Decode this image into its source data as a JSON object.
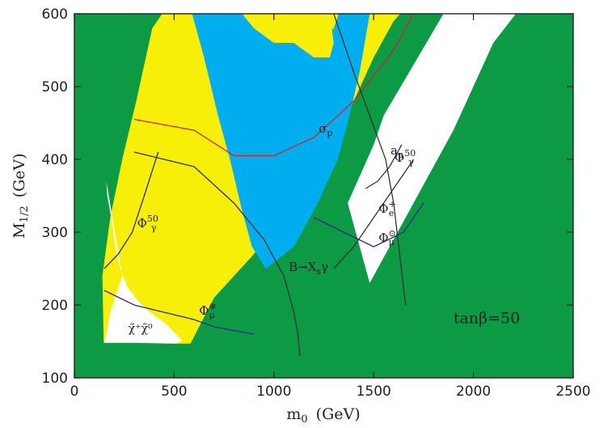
{
  "chart_data": {
    "type": "area",
    "title": "",
    "xlabel": "m",
    "xlabel_sub": "0",
    "xlabel_unit": "(GeV)",
    "ylabel": "M",
    "ylabel_sub": "1/2",
    "ylabel_unit": "(GeV)",
    "xlim": [
      0,
      2500
    ],
    "ylim": [
      100,
      600
    ],
    "x_ticks": [
      0,
      500,
      1000,
      1500,
      2000,
      2500
    ],
    "y_ticks": [
      100,
      200,
      300,
      400,
      500,
      600
    ],
    "x_tick_labels": [
      "0",
      "500",
      "1000",
      "1500",
      "2000",
      "2500"
    ],
    "y_tick_labels": [
      "100",
      "200",
      "300",
      "400",
      "500",
      "600"
    ],
    "colors": {
      "excluded": "#0c9a45",
      "preferred": "#f8ef09",
      "favored": "#00aeef",
      "allowed": "#ffffff",
      "sigma_p": "#d2232a",
      "phi_labels": "#2b2b8c",
      "contours": "#333333"
    },
    "regions": [
      {
        "name": "yellow",
        "color": "#f8ef09",
        "points": [
          [
            150,
            110
          ],
          [
            350,
            100
          ],
          [
            550,
            130
          ],
          [
            700,
            210
          ],
          [
            900,
            270
          ],
          [
            1100,
            350
          ],
          [
            1300,
            420
          ],
          [
            1400,
            480
          ],
          [
            1500,
            540
          ],
          [
            1600,
            590
          ],
          [
            1700,
            620
          ],
          [
            1200,
            620
          ],
          [
            700,
            620
          ],
          [
            490,
            620
          ],
          [
            390,
            580
          ],
          [
            310,
            480
          ],
          [
            240,
            400
          ],
          [
            180,
            320
          ],
          [
            140,
            240
          ]
        ]
      },
      {
        "name": "white",
        "color": "#ffffff",
        "points": [
          [
            160,
            370
          ],
          [
            240,
            240
          ],
          [
            180,
            190
          ],
          [
            160,
            160
          ],
          [
            150,
            148
          ],
          [
            220,
            147
          ],
          [
            300,
            148
          ],
          [
            420,
            147
          ],
          [
            505,
            147
          ],
          [
            540,
            151
          ],
          [
            455,
            175
          ],
          [
            380,
            190
          ],
          [
            320,
            205
          ],
          [
            265,
            225
          ],
          [
            230,
            250
          ],
          [
            205,
            280
          ],
          [
            190,
            310
          ],
          [
            175,
            335
          ],
          [
            165,
            350
          ]
        ]
      },
      {
        "name": "white-band",
        "color": "#ffffff",
        "points": [
          [
            1370,
            340
          ],
          [
            1500,
            420
          ],
          [
            1550,
            460
          ],
          [
            1850,
            600
          ],
          [
            1980,
            620
          ],
          [
            2270,
            620
          ],
          [
            2100,
            560
          ],
          [
            1900,
            440
          ],
          [
            1700,
            340
          ],
          [
            1480,
            230
          ]
        ]
      },
      {
        "name": "green-lower",
        "color": "#0c9a45",
        "points": [
          [
            0,
            100
          ],
          [
            2500,
            100
          ],
          [
            2500,
            620
          ],
          [
            2270,
            620
          ],
          [
            2100,
            560
          ],
          [
            1900,
            440
          ],
          [
            1700,
            340
          ],
          [
            1480,
            230
          ],
          [
            1260,
            160
          ],
          [
            900,
            150
          ],
          [
            560,
            147
          ],
          [
            505,
            147
          ],
          [
            300,
            148
          ],
          [
            150,
            148
          ],
          [
            0,
            145
          ]
        ]
      },
      {
        "name": "cyan",
        "color": "#00aeef",
        "points": [
          [
            570,
            620
          ],
          [
            650,
            540
          ],
          [
            720,
            460
          ],
          [
            780,
            400
          ],
          [
            840,
            330
          ],
          [
            890,
            280
          ],
          [
            960,
            250
          ],
          [
            1100,
            280
          ],
          [
            1220,
            340
          ],
          [
            1320,
            400
          ],
          [
            1370,
            450
          ],
          [
            1430,
            520
          ],
          [
            1480,
            600
          ],
          [
            1500,
            620
          ],
          [
            1350,
            620
          ],
          [
            1300,
            580
          ],
          [
            1200,
            560
          ],
          [
            1000,
            560
          ],
          [
            900,
            580
          ],
          [
            780,
            620
          ]
        ]
      },
      {
        "name": "yellow-top",
        "color": "#f8ef09",
        "points": [
          [
            1000,
            600
          ],
          [
            1100,
            560
          ],
          [
            1200,
            540
          ],
          [
            1280,
            540
          ],
          [
            1300,
            560
          ],
          [
            1280,
            600
          ],
          [
            1250,
            620
          ],
          [
            1050,
            620
          ]
        ]
      }
    ],
    "curves": [
      {
        "name": "sigma_p",
        "label": "σ",
        "label_sub": "p",
        "color": "#d2232a",
        "points": [
          [
            300,
            455
          ],
          [
            600,
            440
          ],
          [
            800,
            405
          ],
          [
            1000,
            405
          ],
          [
            1200,
            430
          ],
          [
            1400,
            480
          ],
          [
            1600,
            550
          ],
          [
            1700,
            600
          ]
        ]
      },
      {
        "name": "bsg",
        "label": "B→X",
        "label_sub": "s",
        "label_end": "γ",
        "color": "#333333",
        "points": [
          [
            300,
            410
          ],
          [
            600,
            390
          ],
          [
            800,
            340
          ],
          [
            950,
            290
          ],
          [
            1050,
            240
          ],
          [
            1100,
            190
          ],
          [
            1120,
            160
          ],
          [
            1130,
            130
          ]
        ]
      },
      {
        "name": "amu",
        "label": "a",
        "label_sub": "μ",
        "color": "#333333",
        "points": [
          [
            1300,
            600
          ],
          [
            1350,
            560
          ],
          [
            1400,
            520
          ],
          [
            1480,
            460
          ],
          [
            1560,
            400
          ],
          [
            1600,
            340
          ],
          [
            1630,
            270
          ],
          [
            1660,
            200
          ]
        ]
      },
      {
        "name": "phi_gamma50_left",
        "label": "Φ",
        "label_sub": "γ",
        "label_sup": "50",
        "color": "#2b2b8c",
        "points": [
          [
            150,
            250
          ],
          [
            220,
            270
          ],
          [
            290,
            300
          ],
          [
            350,
            350
          ],
          [
            420,
            410
          ]
        ]
      },
      {
        "name": "phi_mu_oplus",
        "label": "Φ",
        "label_sub": "μ",
        "label_sup": "⊕",
        "color": "#2b2b8c",
        "points": [
          [
            150,
            220
          ],
          [
            300,
            200
          ],
          [
            450,
            190
          ],
          [
            600,
            180
          ],
          [
            700,
            170
          ],
          [
            900,
            160
          ]
        ]
      },
      {
        "name": "phi_mu_odot",
        "label": "Φ",
        "label_sub": "μ",
        "label_sup": "⊙",
        "color": "#2b2b8c",
        "points": [
          [
            1200,
            320
          ],
          [
            1350,
            300
          ],
          [
            1500,
            280
          ],
          [
            1650,
            300
          ],
          [
            1750,
            340
          ]
        ]
      },
      {
        "name": "phi_gamma50_right",
        "label": "Φ",
        "label_sub": "γ",
        "label_sup": "50",
        "color": "#2b2b8c",
        "points": [
          [
            1460,
            360
          ],
          [
            1520,
            370
          ],
          [
            1580,
            390
          ],
          [
            1640,
            420
          ]
        ]
      },
      {
        "name": "phi_e_plus",
        "label": "Φ",
        "label_sub": "e",
        "label_sup": "+",
        "color": "#333333",
        "points": [
          [
            1300,
            250
          ],
          [
            1400,
            280
          ],
          [
            1500,
            320
          ],
          [
            1600,
            360
          ],
          [
            1700,
            400
          ]
        ]
      }
    ],
    "annotations": [
      {
        "name": "tan-beta",
        "text": "tanβ=50",
        "x": 1900,
        "y": 175
      },
      {
        "name": "chargino-neutralino",
        "text": "χ̃⁺χ̃⁰",
        "x": 270,
        "y": 163
      }
    ]
  }
}
